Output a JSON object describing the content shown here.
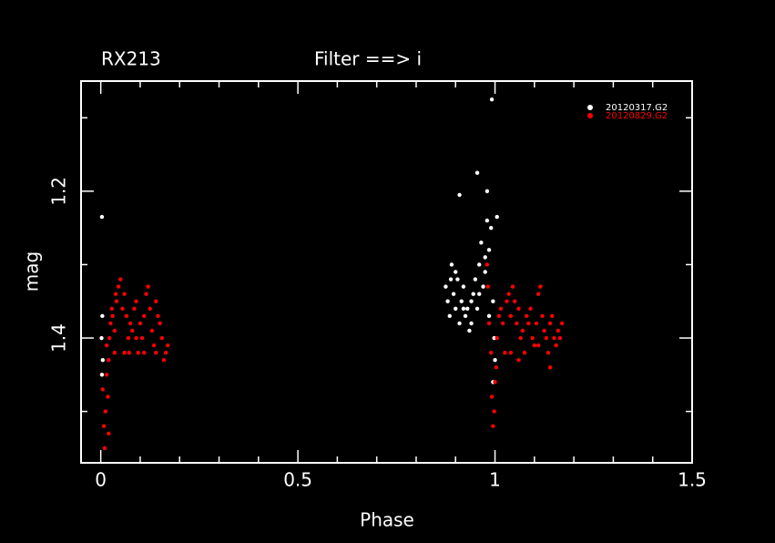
{
  "chart_data": {
    "type": "scatter",
    "title": "RX213",
    "subtitle": "Filter ==> i",
    "x_label": "Phase",
    "y_label": "mag",
    "xlim": [
      -0.05,
      1.5
    ],
    "ylim": [
      1.57,
      1.05
    ],
    "xticks": [
      0,
      0.5,
      1,
      1.5
    ],
    "yticks": [
      1.2,
      1.4
    ],
    "xminorticks": [
      0.1,
      0.2,
      0.3,
      0.4,
      0.6,
      0.7,
      0.8,
      0.9,
      1.1,
      1.2,
      1.3,
      1.4
    ],
    "yminorticks": [
      1.1,
      1.3,
      1.5
    ],
    "legend": "top-right",
    "series": [
      {
        "name": "20120317.G2",
        "color": "#ffffff",
        "x": [
          0.003,
          0.004,
          0.002,
          0.005,
          0.003,
          0.875,
          0.88,
          0.885,
          0.89,
          0.895,
          0.9,
          0.905,
          0.91,
          0.91,
          0.915,
          0.92,
          0.925,
          0.93,
          0.935,
          0.94,
          0.945,
          0.95,
          0.955,
          0.955,
          0.96,
          0.965,
          0.97,
          0.975,
          0.98,
          0.98,
          0.985,
          0.99,
          0.992,
          0.995,
          0.998,
          1.0,
          1.005,
          0.995,
          0.888,
          0.9,
          0.92,
          0.94,
          0.96,
          0.975,
          0.985
        ],
        "values": [
          1.235,
          1.37,
          1.4,
          1.43,
          1.45,
          1.33,
          1.35,
          1.37,
          1.3,
          1.34,
          1.36,
          1.32,
          1.205,
          1.38,
          1.35,
          1.33,
          1.37,
          1.36,
          1.39,
          1.38,
          1.34,
          1.32,
          1.175,
          1.36,
          1.3,
          1.27,
          1.33,
          1.29,
          1.2,
          1.24,
          1.28,
          1.25,
          1.075,
          1.35,
          1.4,
          1.43,
          1.235,
          1.46,
          1.32,
          1.31,
          1.36,
          1.35,
          1.34,
          1.31,
          1.37
        ]
      },
      {
        "name": "20120829.G2",
        "color": "#ff0000",
        "x": [
          0.005,
          0.008,
          0.01,
          0.012,
          0.015,
          0.018,
          0.02,
          0.022,
          0.025,
          0.028,
          0.03,
          0.035,
          0.038,
          0.04,
          0.045,
          0.05,
          0.055,
          0.06,
          0.065,
          0.07,
          0.072,
          0.075,
          0.08,
          0.085,
          0.09,
          0.095,
          0.1,
          0.105,
          0.11,
          0.115,
          0.12,
          0.125,
          0.13,
          0.135,
          0.14,
          0.145,
          0.15,
          0.155,
          0.16,
          0.165,
          0.17,
          0.06,
          0.09,
          0.11,
          0.14,
          0.02,
          0.015,
          0.035,
          0.985,
          0.99,
          0.992,
          0.995,
          0.998,
          1.0,
          1.003,
          1.005,
          0.98,
          0.982,
          1.01,
          1.015,
          1.02,
          1.025,
          1.03,
          1.035,
          1.04,
          1.045,
          1.05,
          1.055,
          1.06,
          1.065,
          1.07,
          1.075,
          1.08,
          1.085,
          1.09,
          1.095,
          1.1,
          1.105,
          1.11,
          1.115,
          1.12,
          1.125,
          1.13,
          1.135,
          1.14,
          1.145,
          1.15,
          1.155,
          1.16,
          1.165,
          1.17,
          1.04,
          1.06,
          1.11,
          1.14
        ],
        "values": [
          1.47,
          1.52,
          1.55,
          1.5,
          1.45,
          1.48,
          1.43,
          1.4,
          1.38,
          1.36,
          1.37,
          1.39,
          1.34,
          1.35,
          1.33,
          1.32,
          1.36,
          1.34,
          1.37,
          1.4,
          1.42,
          1.38,
          1.39,
          1.36,
          1.4,
          1.42,
          1.38,
          1.4,
          1.37,
          1.34,
          1.33,
          1.36,
          1.39,
          1.41,
          1.42,
          1.37,
          1.38,
          1.4,
          1.43,
          1.42,
          1.41,
          1.42,
          1.35,
          1.42,
          1.35,
          1.53,
          1.41,
          1.42,
          1.38,
          1.42,
          1.48,
          1.52,
          1.5,
          1.46,
          1.44,
          1.4,
          1.3,
          1.33,
          1.37,
          1.36,
          1.38,
          1.42,
          1.35,
          1.34,
          1.37,
          1.33,
          1.35,
          1.38,
          1.36,
          1.4,
          1.39,
          1.42,
          1.37,
          1.38,
          1.36,
          1.4,
          1.41,
          1.38,
          1.34,
          1.33,
          1.37,
          1.39,
          1.4,
          1.42,
          1.38,
          1.37,
          1.4,
          1.41,
          1.39,
          1.4,
          1.38,
          1.42,
          1.43,
          1.41,
          1.44
        ]
      }
    ]
  }
}
